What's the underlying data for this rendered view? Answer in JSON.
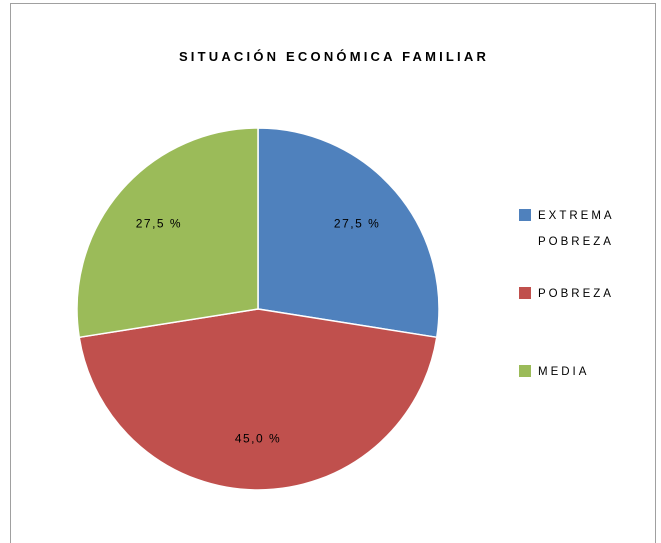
{
  "chart_data": {
    "type": "pie",
    "title": "SITUACIÓN ECONÓMICA FAMILIAR",
    "categories": [
      "EXTREMA POBREZA",
      "POBREZA",
      "MEDIA"
    ],
    "values": [
      27.5,
      45.0,
      27.5
    ],
    "value_labels": [
      "27,5 %",
      "45,0 %",
      "27,5 %"
    ],
    "colors": [
      "#4f81bd",
      "#c0504d",
      "#9bbb59"
    ],
    "legend": "right"
  }
}
